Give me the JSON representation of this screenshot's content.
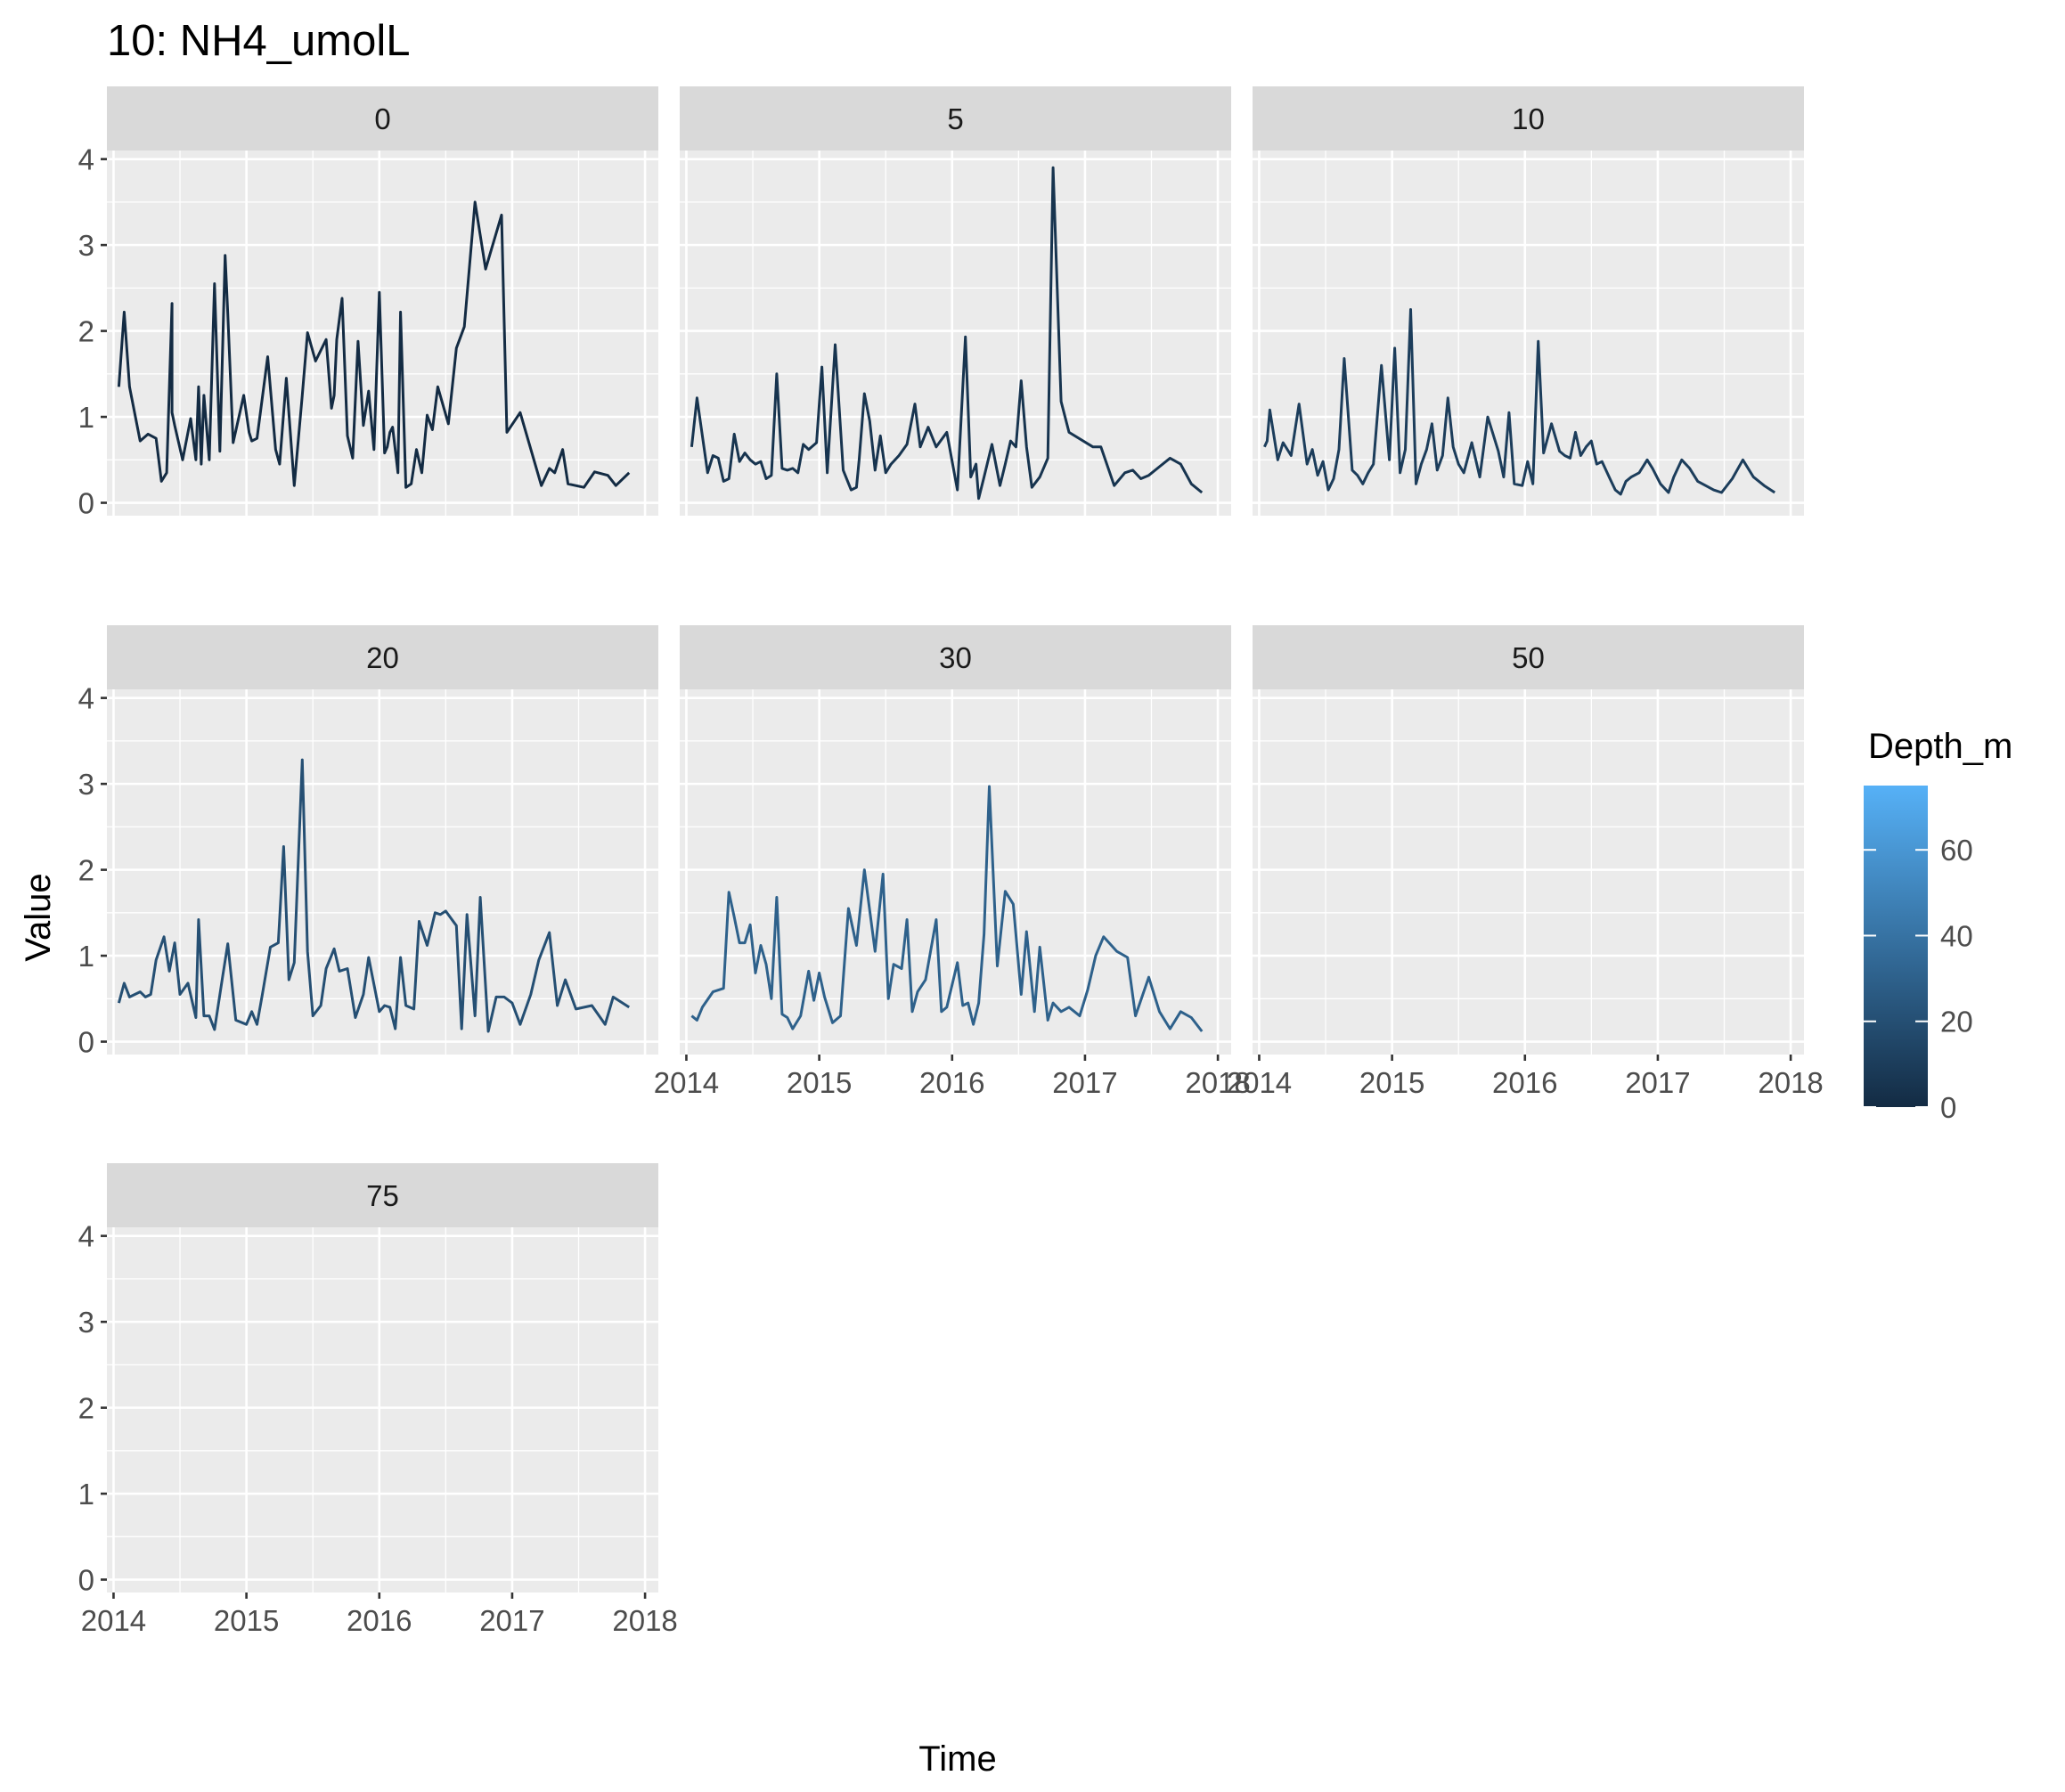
{
  "chart_data": {
    "type": "line",
    "title": "10: NH4_umolL",
    "xlabel": "Time",
    "ylabel": "Value",
    "ylim": [
      -0.15,
      4.1
    ],
    "xlim": [
      2013.95,
      2018.1
    ],
    "yticks": [
      0,
      1,
      2,
      3,
      4
    ],
    "xticks": [
      2014,
      2015,
      2016,
      2017,
      2018
    ],
    "grid": true,
    "legend": {
      "title": "Depth_m",
      "position": "right",
      "range": [
        0,
        75
      ],
      "ticks": [
        0,
        20,
        40,
        60
      ],
      "color_low": "#132B43",
      "color_high": "#56B1F7"
    },
    "facets": [
      {
        "label": "0",
        "depth": 0,
        "x": [
          2014.04,
          2014.08,
          2014.12,
          2014.2,
          2014.26,
          2014.32,
          2014.36,
          2014.4,
          2014.44,
          2014.44,
          2014.46,
          2014.52,
          2014.58,
          2014.62,
          2014.64,
          2014.66,
          2014.68,
          2014.72,
          2014.76,
          2014.8,
          2014.84,
          2014.86,
          2014.9,
          2014.98,
          2015.02,
          2015.04,
          2015.08,
          2015.16,
          2015.22,
          2015.25,
          2015.3,
          2015.36,
          2015.42,
          2015.46,
          2015.52,
          2015.6,
          2015.64,
          2015.66,
          2015.68,
          2015.72,
          2015.76,
          2015.8,
          2015.84,
          2015.88,
          2015.92,
          2015.96,
          2016.0,
          2016.04,
          2016.06,
          2016.08,
          2016.1,
          2016.14,
          2016.16,
          2016.2,
          2016.24,
          2016.28,
          2016.32,
          2016.36,
          2016.4,
          2016.44,
          2016.52,
          2016.58,
          2016.64,
          2016.72,
          2016.8,
          2016.92,
          2016.96,
          2017.06,
          2017.22,
          2017.28,
          2017.32,
          2017.38,
          2017.42,
          2017.54,
          2017.62,
          2017.72,
          2017.78,
          2017.88
        ],
        "y": [
          1.35,
          2.22,
          1.35,
          0.72,
          0.8,
          0.75,
          0.25,
          0.35,
          2.32,
          1.05,
          0.9,
          0.5,
          0.98,
          0.5,
          1.35,
          0.45,
          1.25,
          0.5,
          2.55,
          0.6,
          2.88,
          2.2,
          0.7,
          1.25,
          0.82,
          0.72,
          0.75,
          1.7,
          0.62,
          0.45,
          1.45,
          0.2,
          1.25,
          1.98,
          1.65,
          1.9,
          1.1,
          1.25,
          1.9,
          2.38,
          0.78,
          0.52,
          1.88,
          0.9,
          1.3,
          0.62,
          2.45,
          0.58,
          0.65,
          0.82,
          0.88,
          0.35,
          2.22,
          0.18,
          0.22,
          0.62,
          0.35,
          1.02,
          0.85,
          1.35,
          0.92,
          1.8,
          2.05,
          3.5,
          2.72,
          3.35,
          0.82,
          1.05,
          0.2,
          0.4,
          0.35,
          0.62,
          0.22,
          0.18,
          0.36,
          0.32,
          0.2,
          0.35
        ]
      },
      {
        "label": "5",
        "depth": 5,
        "x": [
          2014.04,
          2014.08,
          2014.16,
          2014.2,
          2014.24,
          2014.28,
          2014.32,
          2014.36,
          2014.4,
          2014.44,
          2014.48,
          2014.52,
          2014.56,
          2014.6,
          2014.64,
          2014.68,
          2014.72,
          2014.76,
          2014.8,
          2014.84,
          2014.88,
          2014.92,
          2014.98,
          2015.02,
          2015.06,
          2015.12,
          2015.18,
          2015.24,
          2015.28,
          2015.3,
          2015.34,
          2015.38,
          2015.42,
          2015.46,
          2015.5,
          2015.54,
          2015.6,
          2015.66,
          2015.72,
          2015.76,
          2015.82,
          2015.88,
          2015.96,
          2016.04,
          2016.1,
          2016.14,
          2016.18,
          2016.2,
          2016.24,
          2016.3,
          2016.36,
          2016.4,
          2016.44,
          2016.48,
          2016.52,
          2016.56,
          2016.6,
          2016.66,
          2016.72,
          2016.76,
          2016.82,
          2016.88,
          2017.06,
          2017.12,
          2017.22,
          2017.3,
          2017.36,
          2017.42,
          2017.48,
          2017.56,
          2017.64,
          2017.72,
          2017.8,
          2017.88
        ],
        "y": [
          0.65,
          1.22,
          0.35,
          0.55,
          0.52,
          0.25,
          0.28,
          0.8,
          0.48,
          0.58,
          0.5,
          0.45,
          0.48,
          0.28,
          0.32,
          1.5,
          0.4,
          0.38,
          0.4,
          0.35,
          0.68,
          0.62,
          0.7,
          1.58,
          0.35,
          1.84,
          0.38,
          0.15,
          0.18,
          0.5,
          1.27,
          0.95,
          0.38,
          0.78,
          0.35,
          0.45,
          0.55,
          0.68,
          1.15,
          0.65,
          0.88,
          0.65,
          0.82,
          0.15,
          1.93,
          0.3,
          0.45,
          0.05,
          0.3,
          0.68,
          0.2,
          0.45,
          0.72,
          0.65,
          1.42,
          0.65,
          0.18,
          0.3,
          0.52,
          3.9,
          1.18,
          0.82,
          0.65,
          0.65,
          0.2,
          0.35,
          0.38,
          0.28,
          0.32,
          0.42,
          0.52,
          0.45,
          0.22,
          0.12
        ]
      },
      {
        "label": "10",
        "depth": 10,
        "x": [
          2014.04,
          2014.06,
          2014.08,
          2014.14,
          2014.18,
          2014.24,
          2014.3,
          2014.36,
          2014.4,
          2014.44,
          2014.48,
          2014.52,
          2014.56,
          2014.6,
          2014.64,
          2014.7,
          2014.74,
          2014.78,
          2014.82,
          2014.86,
          2014.92,
          2014.98,
          2015.02,
          2015.06,
          2015.1,
          2015.14,
          2015.18,
          2015.22,
          2015.26,
          2015.3,
          2015.34,
          2015.38,
          2015.42,
          2015.46,
          2015.5,
          2015.54,
          2015.6,
          2015.66,
          2015.72,
          2015.8,
          2015.84,
          2015.88,
          2015.92,
          2015.98,
          2016.02,
          2016.06,
          2016.1,
          2016.14,
          2016.2,
          2016.26,
          2016.3,
          2016.34,
          2016.38,
          2016.42,
          2016.46,
          2016.5,
          2016.54,
          2016.58,
          2016.64,
          2016.68,
          2016.72,
          2016.76,
          2016.8,
          2016.86,
          2016.92,
          2016.96,
          2017.02,
          2017.08,
          2017.12,
          2017.18,
          2017.24,
          2017.3,
          2017.36,
          2017.42,
          2017.48,
          2017.56,
          2017.64,
          2017.72,
          2017.8,
          2017.88
        ],
        "y": [
          0.65,
          0.72,
          1.08,
          0.5,
          0.7,
          0.55,
          1.15,
          0.45,
          0.62,
          0.32,
          0.48,
          0.15,
          0.28,
          0.62,
          1.68,
          0.38,
          0.32,
          0.22,
          0.35,
          0.45,
          1.6,
          0.5,
          1.8,
          0.35,
          0.62,
          2.25,
          0.22,
          0.45,
          0.62,
          0.92,
          0.38,
          0.55,
          1.22,
          0.65,
          0.45,
          0.35,
          0.7,
          0.3,
          1.0,
          0.6,
          0.3,
          1.05,
          0.22,
          0.2,
          0.48,
          0.22,
          1.88,
          0.58,
          0.92,
          0.6,
          0.55,
          0.52,
          0.82,
          0.55,
          0.65,
          0.72,
          0.45,
          0.48,
          0.28,
          0.15,
          0.1,
          0.25,
          0.3,
          0.35,
          0.5,
          0.4,
          0.22,
          0.12,
          0.3,
          0.5,
          0.4,
          0.25,
          0.2,
          0.15,
          0.12,
          0.28,
          0.5,
          0.3,
          0.2,
          0.12
        ]
      },
      {
        "label": "20",
        "depth": 20,
        "x": [
          2014.04,
          2014.08,
          2014.12,
          2014.2,
          2014.24,
          2014.28,
          2014.32,
          2014.38,
          2014.42,
          2014.46,
          2014.5,
          2014.56,
          2014.62,
          2014.64,
          2014.68,
          2014.72,
          2014.76,
          2014.82,
          2014.86,
          2014.92,
          2015.0,
          2015.04,
          2015.08,
          2015.12,
          2015.18,
          2015.24,
          2015.28,
          2015.32,
          2015.36,
          2015.42,
          2015.46,
          2015.5,
          2015.56,
          2015.6,
          2015.66,
          2015.7,
          2015.76,
          2015.82,
          2015.88,
          2015.92,
          2016.0,
          2016.04,
          2016.08,
          2016.12,
          2016.16,
          2016.2,
          2016.26,
          2016.3,
          2016.36,
          2016.42,
          2016.46,
          2016.5,
          2016.58,
          2016.62,
          2016.66,
          2016.72,
          2016.76,
          2016.82,
          2016.88,
          2016.94,
          2017.0,
          2017.06,
          2017.14,
          2017.2,
          2017.28,
          2017.34,
          2017.4,
          2017.48,
          2017.6,
          2017.7,
          2017.76,
          2017.88
        ],
        "y": [
          0.45,
          0.68,
          0.52,
          0.58,
          0.52,
          0.55,
          0.95,
          1.22,
          0.82,
          1.15,
          0.55,
          0.68,
          0.28,
          1.42,
          0.3,
          0.3,
          0.14,
          0.75,
          1.14,
          0.25,
          0.2,
          0.35,
          0.2,
          0.55,
          1.1,
          1.15,
          2.27,
          0.72,
          0.92,
          3.28,
          1.05,
          0.3,
          0.42,
          0.85,
          1.08,
          0.82,
          0.85,
          0.28,
          0.55,
          0.98,
          0.35,
          0.42,
          0.4,
          0.15,
          0.98,
          0.42,
          0.38,
          1.4,
          1.12,
          1.5,
          1.48,
          1.52,
          1.35,
          0.15,
          1.48,
          0.3,
          1.68,
          0.12,
          0.52,
          0.52,
          0.45,
          0.2,
          0.55,
          0.95,
          1.27,
          0.42,
          0.72,
          0.38,
          0.42,
          0.2,
          0.52,
          0.4
        ]
      },
      {
        "label": "30",
        "depth": 30,
        "x": [
          2014.04,
          2014.08,
          2014.12,
          2014.2,
          2014.28,
          2014.32,
          2014.36,
          2014.4,
          2014.44,
          2014.48,
          2014.52,
          2014.56,
          2014.6,
          2014.64,
          2014.68,
          2014.72,
          2014.76,
          2014.8,
          2014.86,
          2014.92,
          2014.96,
          2015.0,
          2015.04,
          2015.1,
          2015.16,
          2015.22,
          2015.28,
          2015.34,
          2015.42,
          2015.48,
          2015.52,
          2015.56,
          2015.62,
          2015.66,
          2015.7,
          2015.74,
          2015.8,
          2015.88,
          2015.92,
          2015.96,
          2016.04,
          2016.08,
          2016.12,
          2016.16,
          2016.2,
          2016.24,
          2016.28,
          2016.34,
          2016.4,
          2016.46,
          2016.52,
          2016.56,
          2016.62,
          2016.66,
          2016.72,
          2016.76,
          2016.82,
          2016.88,
          2016.96,
          2017.02,
          2017.08,
          2017.14,
          2017.24,
          2017.32,
          2017.38,
          2017.48,
          2017.56,
          2017.64,
          2017.72,
          2017.8,
          2017.88
        ],
        "y": [
          0.3,
          0.25,
          0.4,
          0.58,
          0.62,
          1.74,
          1.45,
          1.15,
          1.15,
          1.36,
          0.8,
          1.12,
          0.9,
          0.5,
          1.68,
          0.32,
          0.28,
          0.15,
          0.3,
          0.82,
          0.48,
          0.8,
          0.52,
          0.22,
          0.3,
          1.55,
          1.12,
          2.0,
          1.05,
          1.95,
          0.5,
          0.9,
          0.85,
          1.42,
          0.35,
          0.58,
          0.72,
          1.42,
          0.35,
          0.4,
          0.92,
          0.42,
          0.45,
          0.2,
          0.45,
          1.25,
          2.97,
          0.88,
          1.75,
          1.6,
          0.55,
          1.28,
          0.35,
          1.1,
          0.25,
          0.45,
          0.35,
          0.4,
          0.3,
          0.6,
          1.0,
          1.22,
          1.05,
          0.98,
          0.3,
          0.75,
          0.35,
          0.15,
          0.35,
          0.28,
          0.12
        ]
      },
      {
        "label": "50",
        "depth": 50,
        "x": [],
        "y": []
      },
      {
        "label": "75",
        "depth": 75,
        "x": [],
        "y": []
      }
    ]
  }
}
